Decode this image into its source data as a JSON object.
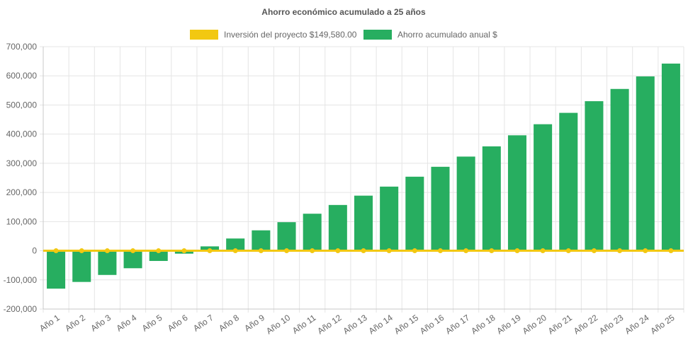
{
  "chart_data": {
    "type": "bar",
    "title": "Ahorro económico acumulado a 25 años",
    "categories": [
      "Año 1",
      "Año 2",
      "Año 3",
      "Año 4",
      "Año 5",
      "Año 6",
      "Año 7",
      "Año 8",
      "Año 9",
      "Año 10",
      "Año 11",
      "Año 12",
      "Año 13",
      "Año 14",
      "Año 15",
      "Año 16",
      "Año 17",
      "Año 18",
      "Año 19",
      "Año 20",
      "Año 21",
      "Año 22",
      "Año 23",
      "Año 24",
      "Año 25"
    ],
    "series": [
      {
        "name": "Inversión del proyecto $149,580.00",
        "type": "line",
        "color": "#f2c811",
        "values": [
          0,
          0,
          0,
          0,
          0,
          0,
          0,
          0,
          0,
          0,
          0,
          0,
          0,
          0,
          0,
          0,
          0,
          0,
          0,
          0,
          0,
          0,
          0,
          0,
          0
        ]
      },
      {
        "name": "Ahorro acumulado anual $",
        "type": "bar",
        "color": "#27ae60",
        "values": [
          -130000,
          -107000,
          -83000,
          -60000,
          -35000,
          -10000,
          15000,
          42000,
          70000,
          98000,
          127000,
          157000,
          189000,
          220000,
          254000,
          288000,
          323000,
          358000,
          396000,
          434000,
          473000,
          513000,
          555000,
          598000,
          642000
        ]
      }
    ],
    "ylim": [
      -200000,
      700000
    ],
    "yticks": [
      700000,
      600000,
      500000,
      400000,
      300000,
      200000,
      100000,
      0,
      -100000,
      -200000
    ],
    "ytick_labels": [
      "700,000",
      "600,000",
      "500,000",
      "400,000",
      "300,000",
      "200,000",
      "100,000",
      "0",
      "-100,000",
      "-200,000"
    ],
    "grid": true,
    "legend_position": "top"
  }
}
